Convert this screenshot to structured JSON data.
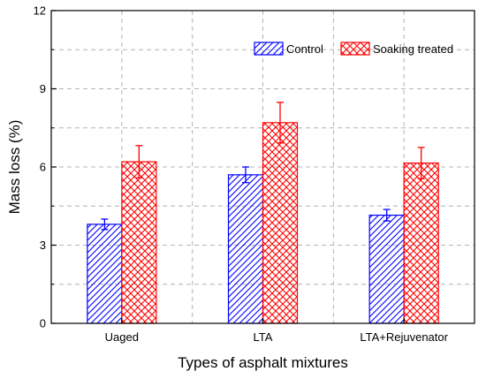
{
  "chart_data": {
    "type": "bar",
    "categories": [
      "Uaged",
      "LTA",
      "LTA+Rejuvenator"
    ],
    "series": [
      {
        "name": "Control",
        "values": [
          3.8,
          5.7,
          4.15
        ],
        "errors": [
          0.2,
          0.3,
          0.22
        ],
        "color": "#0000ff",
        "pattern": "diagonal-hatch"
      },
      {
        "name": "Soaking treated",
        "values": [
          6.2,
          7.7,
          6.15
        ],
        "errors": [
          0.62,
          0.78,
          0.6
        ],
        "color": "#ff0000",
        "pattern": "crosshatch"
      }
    ],
    "xlabel": "Types of asphalt mixtures",
    "ylabel": "Mass loss (%)",
    "ylim": [
      0,
      12
    ],
    "yticks": [
      0,
      3,
      6,
      9,
      12
    ],
    "grid": true,
    "legend_position": "top-right"
  }
}
